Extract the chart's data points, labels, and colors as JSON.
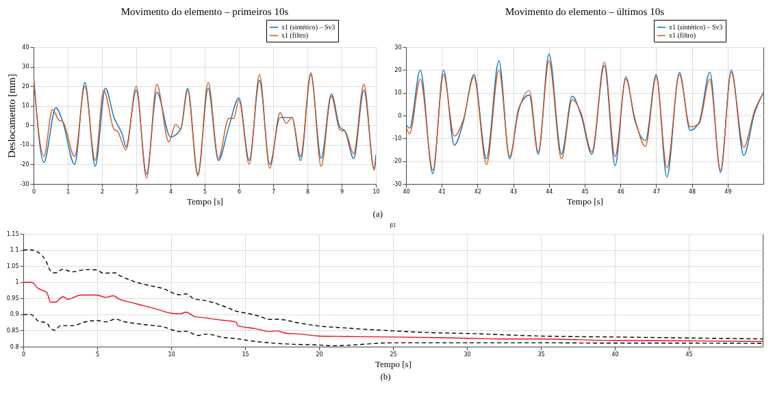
{
  "chart_data": [
    {
      "type": "line",
      "title": "Movimento do elemento – primeiros 10s",
      "xlabel": "Tempo [s]",
      "ylabel": "Deslocamento [mm]",
      "xlim": [
        0,
        10
      ],
      "ylim": [
        -30,
        40
      ],
      "xticks": [
        0,
        1,
        2,
        3,
        4,
        5,
        6,
        7,
        8,
        9,
        10
      ],
      "yticks": [
        -30,
        -20,
        -10,
        0,
        10,
        20,
        30,
        40
      ],
      "grid": true,
      "legend": "top right",
      "annotations": [
        "(a)"
      ],
      "series": [
        {
          "name": "x1 (sintético) – Sv3",
          "color": "#0072bd",
          "x": [
            0,
            0.3,
            0.65,
            0.85,
            1.2,
            1.5,
            1.8,
            2.1,
            2.35,
            2.6,
            2.7,
            3.0,
            3.3,
            3.6,
            4.0,
            4.3,
            4.5,
            4.8,
            5.1,
            5.4,
            5.7,
            6.0,
            6.3,
            6.6,
            6.9,
            7.2,
            7.55,
            7.8,
            8.1,
            8.4,
            8.7,
            8.95,
            9.1,
            9.35,
            9.65,
            9.95,
            10
          ],
          "values": [
            26,
            -19,
            9,
            2,
            -20,
            22,
            -21,
            19,
            4,
            -5,
            -11,
            18,
            -25,
            17,
            -6,
            -2,
            19,
            -25,
            19,
            -18,
            -1,
            14,
            -18,
            23,
            -20,
            4,
            4,
            -18,
            26,
            -17,
            16,
            -1,
            -3,
            -17,
            18,
            -22,
            -15
          ]
        },
        {
          "name": "x1 (filtro)",
          "color": "#d95319",
          "x": [
            0,
            0.3,
            0.55,
            0.75,
            0.85,
            1.2,
            1.5,
            1.8,
            2.05,
            2.35,
            2.45,
            2.7,
            3.0,
            3.3,
            3.6,
            3.95,
            4.15,
            4.3,
            4.5,
            4.8,
            5.1,
            5.4,
            5.7,
            5.85,
            6.0,
            6.3,
            6.6,
            6.9,
            7.2,
            7.38,
            7.55,
            7.8,
            8.1,
            8.4,
            8.7,
            8.95,
            9.1,
            9.35,
            9.65,
            9.95,
            10
          ],
          "values": [
            24,
            -16,
            8,
            2.5,
            2,
            -16,
            20,
            -18,
            18,
            -2,
            -3,
            -12.5,
            20,
            -27,
            21,
            -8.5,
            0.5,
            -2,
            18,
            -26,
            22,
            -17,
            3.5,
            3.5,
            13,
            -20,
            26,
            -22,
            6.5,
            1,
            4,
            -16,
            27,
            -21,
            15,
            -2.5,
            -3,
            -14.5,
            21,
            -23,
            -18
          ]
        }
      ]
    },
    {
      "type": "line",
      "title": "Movimento do elemento – últimos 10s",
      "xlabel": "Tempo [s]",
      "xlim": [
        40,
        50
      ],
      "ylim": [
        -30,
        30
      ],
      "xticks": [
        40,
        41,
        42,
        43,
        44,
        45,
        46,
        47,
        48,
        49
      ],
      "yticks": [
        -30,
        -20,
        -10,
        0,
        10,
        20,
        30
      ],
      "grid": true,
      "legend": "top right",
      "series": [
        {
          "name": "x1 (sintético) – Sv3",
          "color": "#0072bd",
          "x": [
            40,
            40.1,
            40.4,
            40.75,
            41.05,
            41.35,
            41.6,
            41.9,
            42.25,
            42.6,
            42.9,
            43.15,
            43.45,
            43.7,
            44.0,
            44.35,
            44.65,
            44.9,
            45.2,
            45.55,
            45.85,
            46.15,
            46.4,
            46.7,
            47.0,
            47.3,
            47.65,
            47.95,
            48.2,
            48.5,
            48.8,
            49.1,
            49.45,
            49.75,
            50
          ],
          "values": [
            -4,
            -5.5,
            20,
            -25.5,
            20,
            -13,
            -3,
            18,
            -19,
            24,
            -19,
            3,
            9,
            -17,
            27,
            -17,
            8.5,
            0,
            -17,
            22,
            -22,
            17,
            -2,
            -11,
            18,
            -27,
            19,
            -6.5,
            -3,
            19,
            -25,
            20,
            -17.5,
            1,
            10
          ]
        },
        {
          "name": "x1 (filtro)",
          "color": "#d95319",
          "x": [
            40,
            40.1,
            40.4,
            40.75,
            41.05,
            41.35,
            41.6,
            41.9,
            42.25,
            42.6,
            42.9,
            43.15,
            43.45,
            43.7,
            44.0,
            44.35,
            44.65,
            44.9,
            45.2,
            45.55,
            45.85,
            46.15,
            46.4,
            46.7,
            47.0,
            47.3,
            47.65,
            47.95,
            48.2,
            48.5,
            48.8,
            49.1,
            49.45,
            49.75,
            50
          ],
          "values": [
            -5,
            -8,
            16,
            -24,
            18,
            -9,
            -2,
            17,
            -21.5,
            20,
            -18,
            2,
            11,
            -16,
            24,
            -19,
            7,
            1,
            -16,
            23.5,
            -18,
            16,
            -1,
            -13.5,
            17,
            -23,
            18,
            -5,
            -3.5,
            16,
            -24,
            19,
            -14,
            2,
            10
          ]
        }
      ]
    },
    {
      "type": "line",
      "title": "β1",
      "xlabel": "Tempo [s]",
      "xlim": [
        0,
        50
      ],
      "ylim": [
        0.8,
        1.15
      ],
      "xticks": [
        0,
        5,
        10,
        15,
        20,
        25,
        30,
        35,
        40,
        45
      ],
      "yticks": [
        0.8,
        0.85,
        0.9,
        0.95,
        1,
        1.05,
        1.1,
        1.15
      ],
      "grid": true,
      "annotations": [
        "(b)"
      ],
      "series": [
        {
          "color": "#000000",
          "line_style": "dashed",
          "x": [
            0,
            0.56,
            1.5,
            1.85,
            2.15,
            2.7,
            3.3,
            4.2,
            4.96,
            5.4,
            6.2,
            6.5,
            7.2,
            8.3,
            9.4,
            10.6,
            11,
            11.6,
            12.2,
            12.9,
            13.8,
            14.4,
            15.1,
            16,
            16.6,
            17.2,
            18.7,
            20,
            21.8,
            25,
            27.9,
            30,
            33,
            35,
            40,
            45,
            50
          ],
          "values": [
            1.1,
            1.1,
            1.069,
            1.035,
            1.029,
            1.04,
            1.032,
            1.039,
            1.038,
            1.028,
            1.029,
            1.021,
            1.007,
            0.992,
            0.981,
            0.961,
            0.964,
            0.947,
            0.944,
            0.936,
            0.921,
            0.91,
            0.904,
            0.894,
            0.885,
            0.885,
            0.873,
            0.864,
            0.858,
            0.849,
            0.843,
            0.841,
            0.836,
            0.833,
            0.83,
            0.827,
            0.824
          ]
        },
        {
          "color": "#e8101a",
          "line_style": "solid",
          "x": [
            0,
            0.56,
            1,
            1.6,
            1.85,
            2.15,
            2.7,
            3,
            3.9,
            4.96,
            5.6,
            6.1,
            6.5,
            7.2,
            8.15,
            9.06,
            9.97,
            10.6,
            11,
            11.6,
            12.2,
            12.9,
            14.4,
            14.5,
            15.7,
            16.6,
            17.2,
            17.7,
            18.7,
            20,
            21,
            22.5,
            25,
            27.9,
            30,
            32.4,
            35,
            40,
            45,
            50
          ],
          "values": [
            1,
            1,
            0.981,
            0.967,
            0.938,
            0.938,
            0.955,
            0.947,
            0.96,
            0.96,
            0.953,
            0.958,
            0.947,
            0.938,
            0.927,
            0.916,
            0.904,
            0.902,
            0.907,
            0.893,
            0.89,
            0.885,
            0.876,
            0.865,
            0.856,
            0.847,
            0.849,
            0.842,
            0.839,
            0.833,
            0.832,
            0.831,
            0.83,
            0.828,
            0.826,
            0.824,
            0.824,
            0.819,
            0.818,
            0.816
          ]
        },
        {
          "color": "#000000",
          "line_style": "dashed",
          "x": [
            0,
            0.56,
            1,
            1.6,
            1.85,
            2.15,
            2.5,
            3.3,
            4.2,
            4.96,
            5.6,
            6.2,
            6.9,
            8.3,
            9.4,
            10.6,
            11,
            11.8,
            12.4,
            13.6,
            14.4,
            15.1,
            16.6,
            18,
            20,
            21,
            25,
            30,
            35,
            40,
            45,
            50
          ],
          "values": [
            0.9,
            0.899,
            0.88,
            0.873,
            0.856,
            0.851,
            0.865,
            0.865,
            0.877,
            0.881,
            0.877,
            0.885,
            0.877,
            0.868,
            0.862,
            0.847,
            0.848,
            0.835,
            0.839,
            0.828,
            0.825,
            0.82,
            0.812,
            0.808,
            0.805,
            0.803,
            0.812,
            0.812,
            0.812,
            0.811,
            0.811,
            0.81
          ]
        }
      ]
    }
  ]
}
